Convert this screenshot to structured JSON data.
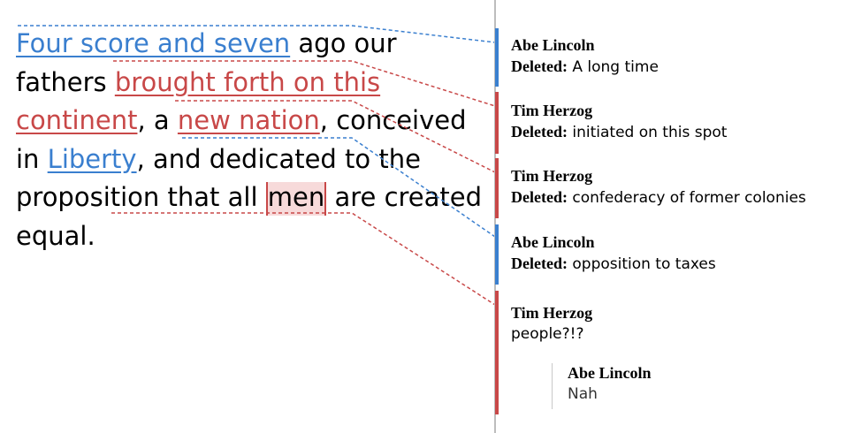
{
  "document": {
    "segments": [
      {
        "text": "Four score and seven",
        "style": "ins-blue"
      },
      {
        "text": " ago our fathers ",
        "style": "plain"
      },
      {
        "text": "brought forth on this continent",
        "style": "ins-red"
      },
      {
        "text": ", a ",
        "style": "plain"
      },
      {
        "text": "new nation",
        "style": "ins-red"
      },
      {
        "text": ", conceived in ",
        "style": "plain"
      },
      {
        "text": "Liberty",
        "style": "ins-blue"
      },
      {
        "text": ", and dedicated to the proposition that all ",
        "style": "plain"
      },
      {
        "text": "men",
        "style": "men-mark"
      },
      {
        "text": " are created equal.",
        "style": "plain"
      }
    ]
  },
  "comments": [
    {
      "author": "Abe Lincoln",
      "label": "Deleted:",
      "text": "A long time",
      "color": "#3a7fcf"
    },
    {
      "author": "Tim Herzog",
      "label": "Deleted:",
      "text": "initiated on this spot",
      "color": "#c84848"
    },
    {
      "author": "Tim Herzog",
      "label": "Deleted:",
      "text": "confederacy of former colonies",
      "color": "#c84848"
    },
    {
      "author": "Abe Lincoln",
      "label": "Deleted:",
      "text": "opposition to taxes",
      "color": "#3a7fcf"
    },
    {
      "author": "Tim Herzog",
      "text": "people?!?",
      "color": "#c84848"
    }
  ],
  "reply": {
    "author": "Abe Lincoln",
    "text": "Nah"
  },
  "colors": {
    "blue": "#3a7fcf",
    "red": "#c84848",
    "highlight": "#f7dada",
    "divider": "#bdbdbd"
  }
}
